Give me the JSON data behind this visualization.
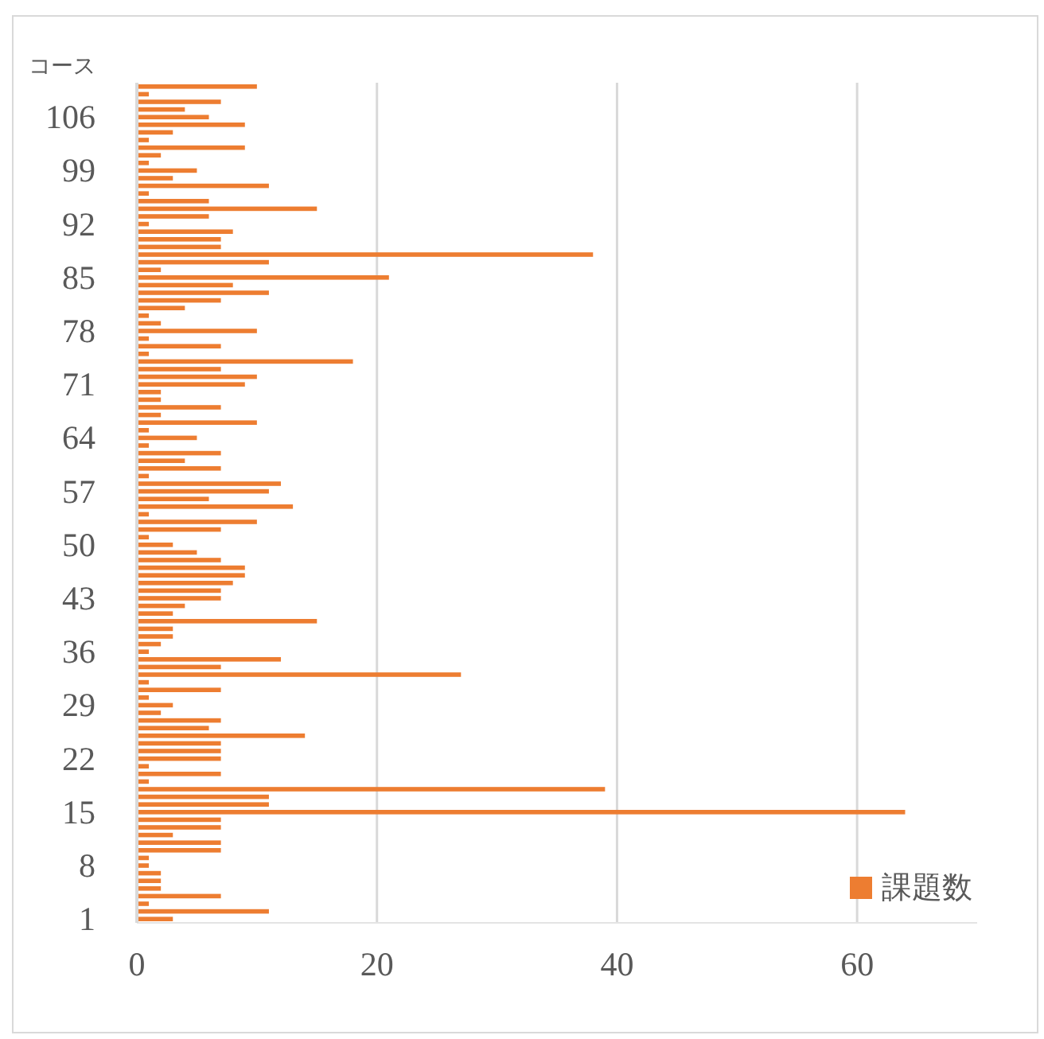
{
  "chart_data": {
    "type": "bar",
    "orientation": "horizontal",
    "ylabel": "コース",
    "categories": [
      null,
      null,
      null,
      null,
      "106",
      null,
      null,
      null,
      null,
      null,
      null,
      "99",
      null,
      null,
      null,
      null,
      null,
      null,
      "92",
      null,
      null,
      null,
      null,
      null,
      null,
      "85",
      null,
      null,
      null,
      null,
      null,
      null,
      "78",
      null,
      null,
      null,
      null,
      null,
      null,
      "71",
      null,
      null,
      null,
      null,
      null,
      null,
      "64",
      null,
      null,
      null,
      null,
      null,
      null,
      "57",
      null,
      null,
      null,
      null,
      null,
      null,
      "50",
      null,
      null,
      null,
      null,
      null,
      null,
      "43",
      null,
      null,
      null,
      null,
      null,
      null,
      "36",
      null,
      null,
      null,
      null,
      null,
      null,
      "29",
      null,
      null,
      null,
      null,
      null,
      null,
      "22",
      null,
      null,
      null,
      null,
      null,
      null,
      "15",
      null,
      null,
      null,
      null,
      null,
      null,
      "8",
      null,
      null,
      null,
      null,
      null,
      null,
      "1"
    ],
    "series": [
      {
        "name": "課題数",
        "color": "#ed7d31",
        "values": [
          10,
          1,
          7,
          4,
          6,
          9,
          3,
          1,
          9,
          2,
          1,
          5,
          3,
          11,
          1,
          6,
          15,
          6,
          1,
          8,
          7,
          7,
          38,
          11,
          2,
          21,
          8,
          11,
          7,
          4,
          1,
          2,
          10,
          1,
          7,
          1,
          18,
          7,
          10,
          9,
          2,
          2,
          7,
          2,
          10,
          1,
          5,
          1,
          7,
          4,
          7,
          1,
          12,
          11,
          6,
          13,
          1,
          10,
          7,
          1,
          3,
          5,
          7,
          9,
          9,
          8,
          7,
          7,
          4,
          3,
          15,
          3,
          3,
          2,
          1,
          12,
          7,
          27,
          1,
          7,
          1,
          3,
          2,
          7,
          6,
          14,
          7,
          7,
          7,
          1,
          7,
          1,
          39,
          11,
          11,
          64,
          7,
          7,
          3,
          7,
          7,
          1,
          1,
          2,
          2,
          2,
          7,
          1,
          11,
          3
        ]
      }
    ],
    "xlim": [
      0,
      70
    ],
    "xticks": [
      0,
      20,
      40,
      60
    ],
    "grid": "x",
    "legend": "bottom right"
  }
}
